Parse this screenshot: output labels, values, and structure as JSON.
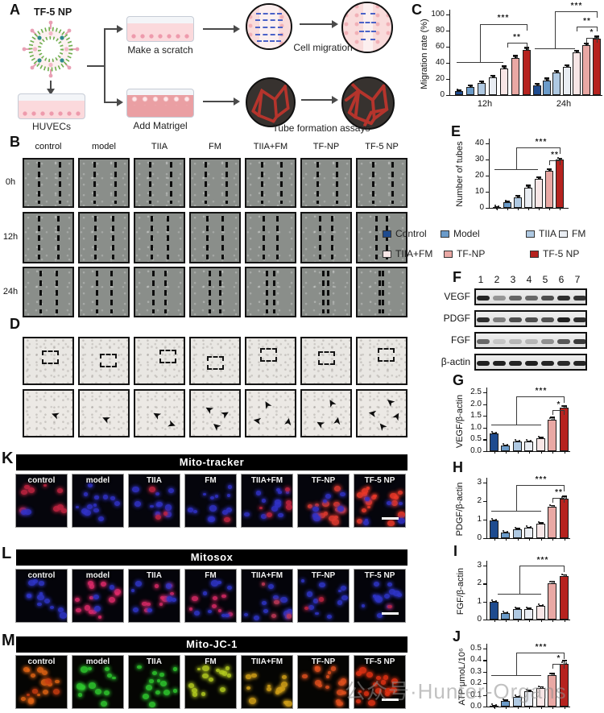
{
  "watermark": "公众号·Hunter-Organs",
  "panelA": {
    "label": "A",
    "np_name": "TF-5 NP",
    "cell_label": "HUVECs",
    "branch1": "Make a scratch",
    "branch2": "Add Matrigel",
    "outcome1": "Cell migration",
    "outcome2": "Tube formation assays"
  },
  "panelB": {
    "label": "B",
    "headers": [
      "control",
      "model",
      "TIIA",
      "FM",
      "TIIA+FM",
      "TF-NP",
      "TF-5 NP"
    ],
    "row_labels": [
      "0h",
      "12h",
      "24h"
    ]
  },
  "panelD": {
    "label": "D"
  },
  "legend": {
    "items": [
      {
        "label": "Control",
        "color": "#1e4b8f"
      },
      {
        "label": "Model",
        "color": "#6b9bc9"
      },
      {
        "label": "TIIA",
        "color": "#afc9e2"
      },
      {
        "label": "FM",
        "color": "#e9edf3"
      },
      {
        "label": "TIIA+FM",
        "color": "#f8e6e6"
      },
      {
        "label": "TF-NP",
        "color": "#e9a8a4"
      },
      {
        "label": "TF-5 NP",
        "color": "#b6231f"
      }
    ]
  },
  "panelF": {
    "label": "F",
    "lanes": [
      "1",
      "2",
      "3",
      "4",
      "5",
      "6",
      "7"
    ],
    "blots": [
      {
        "name": "VEGF",
        "bands": [
          0.92,
          0.38,
          0.62,
          0.6,
          0.72,
          0.88,
          0.85
        ]
      },
      {
        "name": "PDGF",
        "bands": [
          0.88,
          0.5,
          0.72,
          0.72,
          0.7,
          0.95,
          0.88
        ]
      },
      {
        "name": "FGF",
        "bands": [
          0.6,
          0.15,
          0.22,
          0.22,
          0.4,
          0.68,
          0.82
        ]
      },
      {
        "name": "β-actin",
        "bands": [
          0.95,
          0.95,
          0.92,
          0.95,
          0.93,
          0.9,
          0.92
        ]
      }
    ]
  },
  "chart_data": [
    {
      "panel": "C",
      "type": "bar",
      "ylabel": "Migration rate (%)",
      "ylim": [
        0,
        100
      ],
      "yticks": [
        "0",
        "20",
        "40",
        "60",
        "80",
        "100"
      ],
      "x_categories": [
        "12h",
        "24h"
      ],
      "group_names": [
        "control",
        "model",
        "TIIA",
        "FM",
        "TIIA+FM",
        "TF-NP",
        "TF-5 NP"
      ],
      "series": [
        {
          "time": "12h",
          "values": [
            5,
            10,
            15,
            22,
            33,
            46,
            56
          ],
          "errors": [
            2,
            3,
            3,
            3,
            4,
            4,
            4
          ]
        },
        {
          "time": "24h",
          "values": [
            12,
            18,
            28,
            35,
            53,
            62,
            70
          ],
          "errors": [
            3,
            4,
            3,
            3,
            3,
            3,
            4
          ]
        }
      ],
      "significance": {
        "12h": [
          "***",
          "**"
        ],
        "24h": [
          "***",
          "**",
          "*"
        ]
      },
      "grid": false,
      "legend_position": "below-E"
    },
    {
      "panel": "E",
      "type": "bar",
      "ylabel": "Number of tubes",
      "ylim": [
        0,
        40
      ],
      "yticks": [
        "0",
        "10",
        "20",
        "30",
        "40"
      ],
      "categories": [
        "control",
        "model",
        "TIIA",
        "FM",
        "TIIA+FM",
        "TF-NP",
        "TF-5 NP"
      ],
      "values": [
        0.5,
        3.5,
        6.5,
        12.5,
        18,
        23,
        30
      ],
      "errors": [
        0.4,
        1.0,
        1.5,
        2.0,
        1.5,
        1.5,
        1.2
      ],
      "significance": [
        "***",
        "**"
      ],
      "grid": false
    },
    {
      "panel": "G",
      "type": "bar",
      "ylabel": "VEGF/β-actin",
      "ylim": [
        0,
        2.5
      ],
      "yticks": [
        "0.0",
        "0.5",
        "1.0",
        "1.5",
        "2.0",
        "2.5"
      ],
      "categories": [
        "control",
        "model",
        "TIIA",
        "FM",
        "TIIA+FM",
        "TF-NP",
        "TF-5 NP"
      ],
      "values": [
        0.75,
        0.25,
        0.4,
        0.4,
        0.55,
        1.35,
        1.85
      ],
      "errors": [
        0.05,
        0.03,
        0.04,
        0.04,
        0.05,
        0.12,
        0.1
      ],
      "significance": [
        "***",
        "*"
      ],
      "grid": false
    },
    {
      "panel": "H",
      "type": "bar",
      "ylabel": "PDGF/β-actin",
      "ylim": [
        0,
        3
      ],
      "yticks": [
        "0",
        "1",
        "2",
        "3"
      ],
      "categories": [
        "control",
        "model",
        "TIIA",
        "FM",
        "TIIA+FM",
        "TF-NP",
        "TF-5 NP"
      ],
      "values": [
        0.95,
        0.3,
        0.5,
        0.55,
        0.8,
        1.7,
        2.15
      ],
      "errors": [
        0.05,
        0.04,
        0.05,
        0.05,
        0.06,
        0.1,
        0.15
      ],
      "significance": [
        "***",
        "**"
      ],
      "grid": false
    },
    {
      "panel": "I",
      "type": "bar",
      "ylabel": "FGF/β-actin",
      "ylim": [
        0,
        3
      ],
      "yticks": [
        "0",
        "1",
        "2",
        "3"
      ],
      "categories": [
        "control",
        "model",
        "TIIA",
        "FM",
        "TIIA+FM",
        "TF-NP",
        "TF-5 NP"
      ],
      "values": [
        1.0,
        0.35,
        0.6,
        0.6,
        0.75,
        2.0,
        2.4
      ],
      "errors": [
        0.05,
        0.04,
        0.05,
        0.05,
        0.05,
        0.15,
        0.12
      ],
      "significance": [
        "***"
      ],
      "grid": false
    },
    {
      "panel": "J",
      "type": "bar",
      "ylabel": "ATP μmoL/10⁶",
      "ylim": [
        0,
        0.5
      ],
      "yticks": [
        "0.0",
        "0.1",
        "0.2",
        "0.3",
        "0.4",
        "0.5"
      ],
      "categories": [
        "control",
        "model",
        "TIIA",
        "FM",
        "TIIA+FM",
        "TF-NP",
        "TF-5 NP"
      ],
      "values": [
        0.01,
        0.05,
        0.08,
        0.13,
        0.16,
        0.27,
        0.37
      ],
      "errors": [
        0.005,
        0.01,
        0.01,
        0.015,
        0.015,
        0.02,
        0.03
      ],
      "significance": [
        "***",
        "*"
      ],
      "grid": false
    }
  ],
  "fluorescence": {
    "rows": [
      {
        "panel": "K",
        "title": "Mito-tracker",
        "bg": "#05050c",
        "cells": [
          {
            "label": "control",
            "dots": [
              [
                "#c22441",
                9
              ],
              [
                "#3132c8",
                2
              ]
            ]
          },
          {
            "label": "model",
            "dots": [
              [
                "#3132c8",
                13
              ]
            ]
          },
          {
            "label": "TIIA",
            "dots": [
              [
                "#3132c8",
                11
              ],
              [
                "#c22441",
                3
              ]
            ]
          },
          {
            "label": "FM",
            "dots": [
              [
                "#3132c8",
                12
              ],
              [
                "#c22441",
                1
              ]
            ]
          },
          {
            "label": "TIIA+FM",
            "dots": [
              [
                "#3132c8",
                11
              ],
              [
                "#c22441",
                5
              ]
            ]
          },
          {
            "label": "TF-NP",
            "dots": [
              [
                "#e03b30",
                14
              ],
              [
                "#3132c8",
                7
              ]
            ]
          },
          {
            "label": "TF-5 NP",
            "dots": [
              [
                "#ef3a2a",
                18
              ],
              [
                "#3132c8",
                6
              ]
            ]
          }
        ]
      },
      {
        "panel": "L",
        "title": "Mitosox",
        "bg": "#04040a",
        "cells": [
          {
            "label": "control",
            "dots": [
              [
                "#2f35c9",
                12
              ]
            ]
          },
          {
            "label": "model",
            "dots": [
              [
                "#e02a6a",
                13
              ],
              [
                "#2f35c9",
                3
              ]
            ]
          },
          {
            "label": "TIIA",
            "dots": [
              [
                "#d92a66",
                9
              ],
              [
                "#2f35c9",
                7
              ]
            ]
          },
          {
            "label": "FM",
            "dots": [
              [
                "#d92a66",
                7
              ],
              [
                "#2f35c9",
                8
              ]
            ]
          },
          {
            "label": "TIIA+FM",
            "dots": [
              [
                "#2f35c9",
                10
              ],
              [
                "#c23a58",
                4
              ]
            ]
          },
          {
            "label": "TF-NP",
            "dots": [
              [
                "#2f35c9",
                11
              ],
              [
                "#c22441",
                2
              ]
            ]
          },
          {
            "label": "TF-5 NP",
            "dots": [
              [
                "#2f35c9",
                12
              ],
              [
                "#c22441",
                1
              ]
            ]
          }
        ]
      },
      {
        "panel": "M",
        "title": "Mito-JC-1",
        "bg": "#050503",
        "cells": [
          {
            "label": "control",
            "dots": [
              [
                "#e06414",
                13
              ],
              [
                "#c83c10",
                4
              ]
            ]
          },
          {
            "label": "model",
            "dots": [
              [
                "#2ec82e",
                13
              ]
            ]
          },
          {
            "label": "TIIA",
            "dots": [
              [
                "#2ec82e",
                13
              ]
            ]
          },
          {
            "label": "FM",
            "dots": [
              [
                "#b4cc20",
                14
              ]
            ]
          },
          {
            "label": "TIIA+FM",
            "dots": [
              [
                "#d2a018",
                13
              ]
            ]
          },
          {
            "label": "TF-NP",
            "dots": [
              [
                "#e0501e",
                16
              ]
            ]
          },
          {
            "label": "TF-5 NP",
            "dots": [
              [
                "#e43214",
                16
              ]
            ]
          }
        ]
      }
    ]
  }
}
